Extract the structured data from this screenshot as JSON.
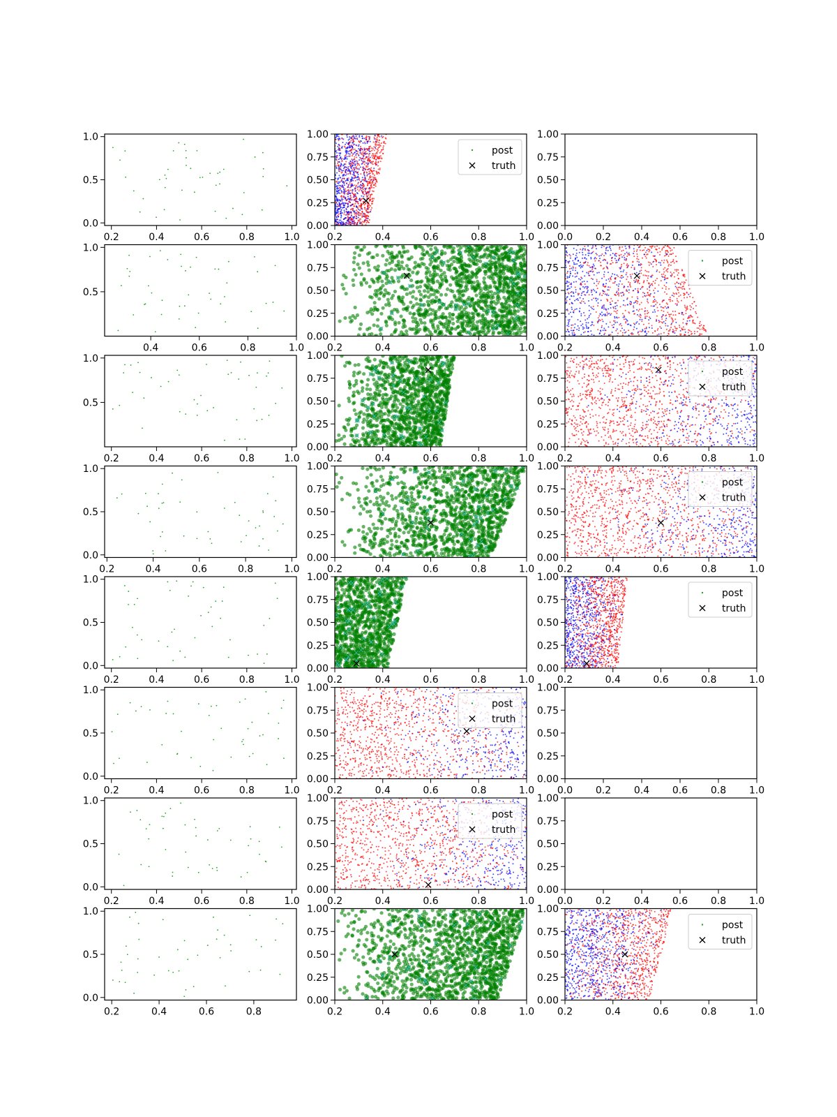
{
  "figure": {
    "background": "#ffffff"
  },
  "colors": {
    "post_a": "#ff0000",
    "post_b": "#0000ff",
    "green": "#008000",
    "light": "#33bbbb",
    "truth": "#000000",
    "scatter_green": "#2ca02c"
  },
  "legend_labels": {
    "post": "post",
    "truth": "truth"
  },
  "chart_data": [
    {
      "row": 0,
      "col": 0,
      "type": "scatter",
      "style": "sparse",
      "xlim": [
        0.17,
        1.02
      ],
      "ylim": [
        -0.03,
        1.03
      ],
      "xticks": [
        0.2,
        0.4,
        0.6,
        0.8,
        1.0
      ],
      "xtick_labels": [
        "0.2",
        "0.4",
        "0.6",
        "0.8",
        "1.0"
      ],
      "yticks": [
        0.0,
        0.5,
        1.0
      ],
      "ytick_labels": [
        "0.0",
        "0.5",
        "1.0"
      ],
      "seed": 11
    },
    {
      "row": 0,
      "col": 1,
      "type": "scatter",
      "style": "redblue",
      "xlim": [
        0.2,
        1.0
      ],
      "ylim": [
        0,
        1
      ],
      "xticks": [
        0.2,
        0.4,
        0.6,
        0.8,
        1.0
      ],
      "xtick_labels": [
        "0.2",
        "0.4",
        "0.6",
        "0.8",
        "1.0"
      ],
      "yticks": [
        0,
        0.25,
        0.5,
        0.75,
        1.0
      ],
      "ytick_labels": [
        "0.00",
        "0.25",
        "0.50",
        "0.75",
        "1.00"
      ],
      "region": {
        "x0": 0.2,
        "x1_bottom": 0.34,
        "x1_top": 0.42
      },
      "blue_dominant": "left",
      "n": 1400,
      "legend": "upper right",
      "truth": [
        0.33,
        0.27
      ],
      "seed": 12
    },
    {
      "row": 0,
      "col": 2,
      "type": "scatter",
      "style": "empty",
      "xlim": [
        0,
        1
      ],
      "ylim": [
        0,
        1
      ],
      "xticks": [
        0,
        0.2,
        0.4,
        0.6,
        0.8,
        1.0
      ],
      "xtick_labels": [
        "0.0",
        "0.2",
        "0.4",
        "0.6",
        "0.8",
        "1.0"
      ],
      "yticks": [
        0,
        0.25,
        0.5,
        0.75,
        1.0
      ],
      "ytick_labels": [
        "0.00",
        "0.25",
        "0.50",
        "0.75",
        "1.00"
      ]
    },
    {
      "row": 1,
      "col": 0,
      "type": "scatter",
      "style": "sparse",
      "xlim": [
        0.21,
        1.0
      ],
      "ylim": [
        0.0,
        1.03
      ],
      "xticks": [
        0.4,
        0.6,
        0.8,
        1.0
      ],
      "xtick_labels": [
        "0.4",
        "0.6",
        "0.8",
        "1.0"
      ],
      "yticks": [
        0.5,
        1.0
      ],
      "ytick_labels": [
        "0.5",
        "1.0"
      ],
      "seed": 21
    },
    {
      "row": 1,
      "col": 1,
      "type": "scatter",
      "style": "green",
      "xlim": [
        0.2,
        1.0
      ],
      "ylim": [
        0,
        1
      ],
      "xticks": [
        0.2,
        0.4,
        0.6,
        0.8,
        1.0
      ],
      "xtick_labels": [
        "0.2",
        "0.4",
        "0.6",
        "0.8",
        "1.0"
      ],
      "yticks": [
        0,
        0.25,
        0.5,
        0.75,
        1.0
      ],
      "ytick_labels": [
        "0.00",
        "0.25",
        "0.50",
        "0.75",
        "1.00"
      ],
      "region": {
        "x0": 0.2,
        "x1_bottom": 1.0,
        "x1_top": 1.0
      },
      "density": "right",
      "n": 1500,
      "truth": [
        0.5,
        0.66
      ],
      "seed": 22
    },
    {
      "row": 1,
      "col": 2,
      "type": "scatter",
      "style": "redblue",
      "xlim": [
        0.2,
        1.0
      ],
      "ylim": [
        0,
        1
      ],
      "xticks": [
        0.2,
        0.4,
        0.6,
        0.8,
        1.0
      ],
      "xtick_labels": [
        "0.2",
        "0.4",
        "0.6",
        "0.8",
        "1.0"
      ],
      "yticks": [
        0,
        0.25,
        0.5,
        0.75,
        1.0
      ],
      "ytick_labels": [
        "0.00",
        "0.25",
        "0.50",
        "0.75",
        "1.00"
      ],
      "region": {
        "x0": 0.2,
        "x1_bottom": 0.8,
        "x1_top": 0.65
      },
      "blue_dominant": "left",
      "n": 1300,
      "legend": "upper right",
      "truth": [
        0.5,
        0.66
      ],
      "seed": 23
    },
    {
      "row": 2,
      "col": 0,
      "type": "scatter",
      "style": "sparse",
      "xlim": [
        0.17,
        1.02
      ],
      "ylim": [
        0.0,
        1.03
      ],
      "xticks": [
        0.2,
        0.4,
        0.6,
        0.8,
        1.0
      ],
      "xtick_labels": [
        "0.2",
        "0.4",
        "0.6",
        "0.8",
        "1.0"
      ],
      "yticks": [
        0.5,
        1.0
      ],
      "ytick_labels": [
        "0.5",
        "1.0"
      ],
      "seed": 31
    },
    {
      "row": 2,
      "col": 1,
      "type": "scatter",
      "style": "green",
      "xlim": [
        0.2,
        1.0
      ],
      "ylim": [
        0,
        1
      ],
      "xticks": [
        0.2,
        0.4,
        0.6,
        0.8,
        1.0
      ],
      "xtick_labels": [
        "0.2",
        "0.4",
        "0.6",
        "0.8",
        "1.0"
      ],
      "yticks": [
        0,
        0.25,
        0.5,
        0.75,
        1.0
      ],
      "ytick_labels": [
        "0.00",
        "0.25",
        "0.50",
        "0.75",
        "1.00"
      ],
      "region": {
        "x0": 0.2,
        "x1_bottom": 0.64,
        "x1_top": 0.7
      },
      "density": "right",
      "n": 1300,
      "truth": [
        0.59,
        0.84
      ],
      "seed": 32
    },
    {
      "row": 2,
      "col": 2,
      "type": "scatter",
      "style": "redblue",
      "xlim": [
        0.2,
        1.0
      ],
      "ylim": [
        0,
        1
      ],
      "xticks": [
        0.2,
        0.4,
        0.6,
        0.8,
        1.0
      ],
      "xtick_labels": [
        "0.2",
        "0.4",
        "0.6",
        "0.8",
        "1.0"
      ],
      "yticks": [
        0,
        0.25,
        0.5,
        0.75,
        1.0
      ],
      "ytick_labels": [
        "0.00",
        "0.25",
        "0.50",
        "0.75",
        "1.00"
      ],
      "region": {
        "x0": 0.2,
        "x1_bottom": 1.0,
        "x1_top": 1.0
      },
      "blue_dominant": "right",
      "n": 1500,
      "legend": "upper right",
      "truth": [
        0.59,
        0.84
      ],
      "seed": 33
    },
    {
      "row": 3,
      "col": 0,
      "type": "scatter",
      "style": "sparse",
      "xlim": [
        0.19,
        1.02
      ],
      "ylim": [
        -0.03,
        1.03
      ],
      "xticks": [
        0.2,
        0.4,
        0.6,
        0.8,
        1.0
      ],
      "xtick_labels": [
        "0.2",
        "0.4",
        "0.6",
        "0.8",
        "1.0"
      ],
      "yticks": [
        0.0,
        0.5,
        1.0
      ],
      "ytick_labels": [
        "0.0",
        "0.5",
        "1.0"
      ],
      "seed": 41
    },
    {
      "row": 3,
      "col": 1,
      "type": "scatter",
      "style": "green",
      "xlim": [
        0.2,
        1.0
      ],
      "ylim": [
        0,
        1
      ],
      "xticks": [
        0.2,
        0.4,
        0.6,
        0.8,
        1.0
      ],
      "xtick_labels": [
        "0.2",
        "0.4",
        "0.6",
        "0.8",
        "1.0"
      ],
      "yticks": [
        0,
        0.25,
        0.5,
        0.75,
        1.0
      ],
      "ytick_labels": [
        "0.00",
        "0.25",
        "0.50",
        "0.75",
        "1.00"
      ],
      "region": {
        "x0": 0.2,
        "x1_bottom": 0.85,
        "x1_top": 1.0
      },
      "density": "right",
      "n": 1400,
      "truth": [
        0.6,
        0.38
      ],
      "seed": 42
    },
    {
      "row": 3,
      "col": 2,
      "type": "scatter",
      "style": "redblue",
      "xlim": [
        0.2,
        1.0
      ],
      "ylim": [
        0,
        1
      ],
      "xticks": [
        0.2,
        0.4,
        0.6,
        0.8,
        1.0
      ],
      "xtick_labels": [
        "0.2",
        "0.4",
        "0.6",
        "0.8",
        "1.0"
      ],
      "yticks": [
        0,
        0.25,
        0.5,
        0.75,
        1.0
      ],
      "ytick_labels": [
        "0.00",
        "0.25",
        "0.50",
        "0.75",
        "1.00"
      ],
      "region": {
        "x0": 0.2,
        "x1_bottom": 1.0,
        "x1_top": 1.0
      },
      "blue_dominant": "right",
      "n": 1500,
      "legend": "upper right",
      "truth": [
        0.6,
        0.38
      ],
      "seed": 43
    },
    {
      "row": 4,
      "col": 0,
      "type": "scatter",
      "style": "sparse",
      "xlim": [
        0.17,
        1.02
      ],
      "ylim": [
        -0.03,
        1.03
      ],
      "xticks": [
        0.2,
        0.4,
        0.6,
        0.8,
        1.0
      ],
      "xtick_labels": [
        "0.2",
        "0.4",
        "0.6",
        "0.8",
        "1.0"
      ],
      "yticks": [
        0.0,
        0.5,
        1.0
      ],
      "ytick_labels": [
        "0.0",
        "0.5",
        "1.0"
      ],
      "seed": 51
    },
    {
      "row": 4,
      "col": 1,
      "type": "scatter",
      "style": "green",
      "xlim": [
        0.2,
        1.0
      ],
      "ylim": [
        0,
        1
      ],
      "xticks": [
        0.2,
        0.4,
        0.6,
        0.8,
        1.0
      ],
      "xtick_labels": [
        "0.2",
        "0.4",
        "0.6",
        "0.8",
        "1.0"
      ],
      "yticks": [
        0,
        0.25,
        0.5,
        0.75,
        1.0
      ],
      "ytick_labels": [
        "0.00",
        "0.25",
        "0.50",
        "0.75",
        "1.00"
      ],
      "region": {
        "x0": 0.2,
        "x1_bottom": 0.42,
        "x1_top": 0.5
      },
      "density": "uniform",
      "n": 1100,
      "truth": [
        0.29,
        0.05
      ],
      "seed": 52
    },
    {
      "row": 4,
      "col": 2,
      "type": "scatter",
      "style": "redblue",
      "xlim": [
        0.2,
        1.0
      ],
      "ylim": [
        0,
        1
      ],
      "xticks": [
        0.2,
        0.4,
        0.6,
        0.8,
        1.0
      ],
      "xtick_labels": [
        "0.2",
        "0.4",
        "0.6",
        "0.8",
        "1.0"
      ],
      "yticks": [
        0,
        0.25,
        0.5,
        0.75,
        1.0
      ],
      "ytick_labels": [
        "0.00",
        "0.25",
        "0.50",
        "0.75",
        "1.00"
      ],
      "region": {
        "x0": 0.2,
        "x1_bottom": 0.42,
        "x1_top": 0.46
      },
      "blue_dominant": "left",
      "n": 1400,
      "legend": "upper right",
      "truth": [
        0.29,
        0.05
      ],
      "seed": 53
    },
    {
      "row": 5,
      "col": 0,
      "type": "scatter",
      "style": "sparse",
      "xlim": [
        0.17,
        1.02
      ],
      "ylim": [
        -0.03,
        1.03
      ],
      "xticks": [
        0.2,
        0.4,
        0.6,
        0.8,
        1.0
      ],
      "xtick_labels": [
        "0.2",
        "0.4",
        "0.6",
        "0.8",
        "1.0"
      ],
      "yticks": [
        0.0,
        0.5,
        1.0
      ],
      "ytick_labels": [
        "0.0",
        "0.5",
        "1.0"
      ],
      "seed": 61
    },
    {
      "row": 5,
      "col": 1,
      "type": "scatter",
      "style": "redblue",
      "xlim": [
        0.2,
        1.0
      ],
      "ylim": [
        0,
        1
      ],
      "xticks": [
        0.2,
        0.4,
        0.6,
        0.8,
        1.0
      ],
      "xtick_labels": [
        "0.2",
        "0.4",
        "0.6",
        "0.8",
        "1.0"
      ],
      "yticks": [
        0,
        0.25,
        0.5,
        0.75,
        1.0
      ],
      "ytick_labels": [
        "0.00",
        "0.25",
        "0.50",
        "0.75",
        "1.00"
      ],
      "region": {
        "x0": 0.2,
        "x1_bottom": 1.0,
        "x1_top": 1.0
      },
      "blue_dominant": "right",
      "n": 1400,
      "legend": "upper right",
      "truth": [
        0.75,
        0.52
      ],
      "seed": 62
    },
    {
      "row": 5,
      "col": 2,
      "type": "scatter",
      "style": "empty",
      "xlim": [
        0,
        1
      ],
      "ylim": [
        0,
        1
      ],
      "xticks": [
        0,
        0.2,
        0.4,
        0.6,
        0.8,
        1.0
      ],
      "xtick_labels": [
        "0.0",
        "0.2",
        "0.4",
        "0.6",
        "0.8",
        "1.0"
      ],
      "yticks": [
        0,
        0.25,
        0.5,
        0.75,
        1.0
      ],
      "ytick_labels": [
        "0.00",
        "0.25",
        "0.50",
        "0.75",
        "1.00"
      ]
    },
    {
      "row": 6,
      "col": 0,
      "type": "scatter",
      "style": "sparse",
      "xlim": [
        0.17,
        1.02
      ],
      "ylim": [
        -0.03,
        1.03
      ],
      "xticks": [
        0.2,
        0.4,
        0.6,
        0.8,
        1.0
      ],
      "xtick_labels": [
        "0.2",
        "0.4",
        "0.6",
        "0.8",
        "1.0"
      ],
      "yticks": [
        0.0,
        0.5,
        1.0
      ],
      "ytick_labels": [
        "0.0",
        "0.5",
        "1.0"
      ],
      "seed": 71
    },
    {
      "row": 6,
      "col": 1,
      "type": "scatter",
      "style": "redblue",
      "xlim": [
        0.2,
        1.0
      ],
      "ylim": [
        0,
        1
      ],
      "xticks": [
        0.2,
        0.4,
        0.6,
        0.8,
        1.0
      ],
      "xtick_labels": [
        "0.2",
        "0.4",
        "0.6",
        "0.8",
        "1.0"
      ],
      "yticks": [
        0,
        0.25,
        0.5,
        0.75,
        1.0
      ],
      "ytick_labels": [
        "0.00",
        "0.25",
        "0.50",
        "0.75",
        "1.00"
      ],
      "region": {
        "x0": 0.2,
        "x1_bottom": 1.0,
        "x1_top": 1.0
      },
      "blue_dominant": "right",
      "n": 1400,
      "legend": "upper right",
      "truth": [
        0.59,
        0.05
      ],
      "seed": 72
    },
    {
      "row": 6,
      "col": 2,
      "type": "scatter",
      "style": "empty",
      "xlim": [
        0,
        1
      ],
      "ylim": [
        0,
        1
      ],
      "xticks": [
        0,
        0.2,
        0.4,
        0.6,
        0.8,
        1.0
      ],
      "xtick_labels": [
        "0.0",
        "0.2",
        "0.4",
        "0.6",
        "0.8",
        "1.0"
      ],
      "yticks": [
        0,
        0.25,
        0.5,
        0.75,
        1.0
      ],
      "ytick_labels": [
        "0.00",
        "0.25",
        "0.50",
        "0.75",
        "1.00"
      ]
    },
    {
      "row": 7,
      "col": 0,
      "type": "scatter",
      "style": "sparse",
      "xlim": [
        0.17,
        0.98
      ],
      "ylim": [
        -0.03,
        1.03
      ],
      "xticks": [
        0.2,
        0.4,
        0.6,
        0.8
      ],
      "xtick_labels": [
        "0.2",
        "0.4",
        "0.6",
        "0.8"
      ],
      "yticks": [
        0.0,
        0.5,
        1.0
      ],
      "ytick_labels": [
        "0.0",
        "0.5",
        "1.0"
      ],
      "seed": 81
    },
    {
      "row": 7,
      "col": 1,
      "type": "scatter",
      "style": "green",
      "xlim": [
        0.2,
        1.0
      ],
      "ylim": [
        0,
        1
      ],
      "xticks": [
        0.2,
        0.4,
        0.6,
        0.8,
        1.0
      ],
      "xtick_labels": [
        "0.2",
        "0.4",
        "0.6",
        "0.8",
        "1.0"
      ],
      "yticks": [
        0,
        0.25,
        0.5,
        0.75,
        1.0
      ],
      "ytick_labels": [
        "0.00",
        "0.25",
        "0.50",
        "0.75",
        "1.00"
      ],
      "region": {
        "x0": 0.2,
        "x1_bottom": 0.88,
        "x1_top": 1.0
      },
      "density": "right",
      "n": 1500,
      "truth": [
        0.45,
        0.5
      ],
      "seed": 82
    },
    {
      "row": 7,
      "col": 2,
      "type": "scatter",
      "style": "redblue",
      "xlim": [
        0.2,
        1.0
      ],
      "ylim": [
        0,
        1
      ],
      "xticks": [
        0.2,
        0.4,
        0.6,
        0.8,
        1.0
      ],
      "xtick_labels": [
        "0.2",
        "0.4",
        "0.6",
        "0.8",
        "1.0"
      ],
      "yticks": [
        0,
        0.25,
        0.5,
        0.75,
        1.0
      ],
      "ytick_labels": [
        "0.00",
        "0.25",
        "0.50",
        "0.75",
        "1.00"
      ],
      "region": {
        "x0": 0.2,
        "x1_bottom": 0.55,
        "x1_top": 0.65
      },
      "blue_dominant": "left",
      "n": 1500,
      "legend": "upper right",
      "truth": [
        0.45,
        0.5
      ],
      "seed": 83
    }
  ]
}
